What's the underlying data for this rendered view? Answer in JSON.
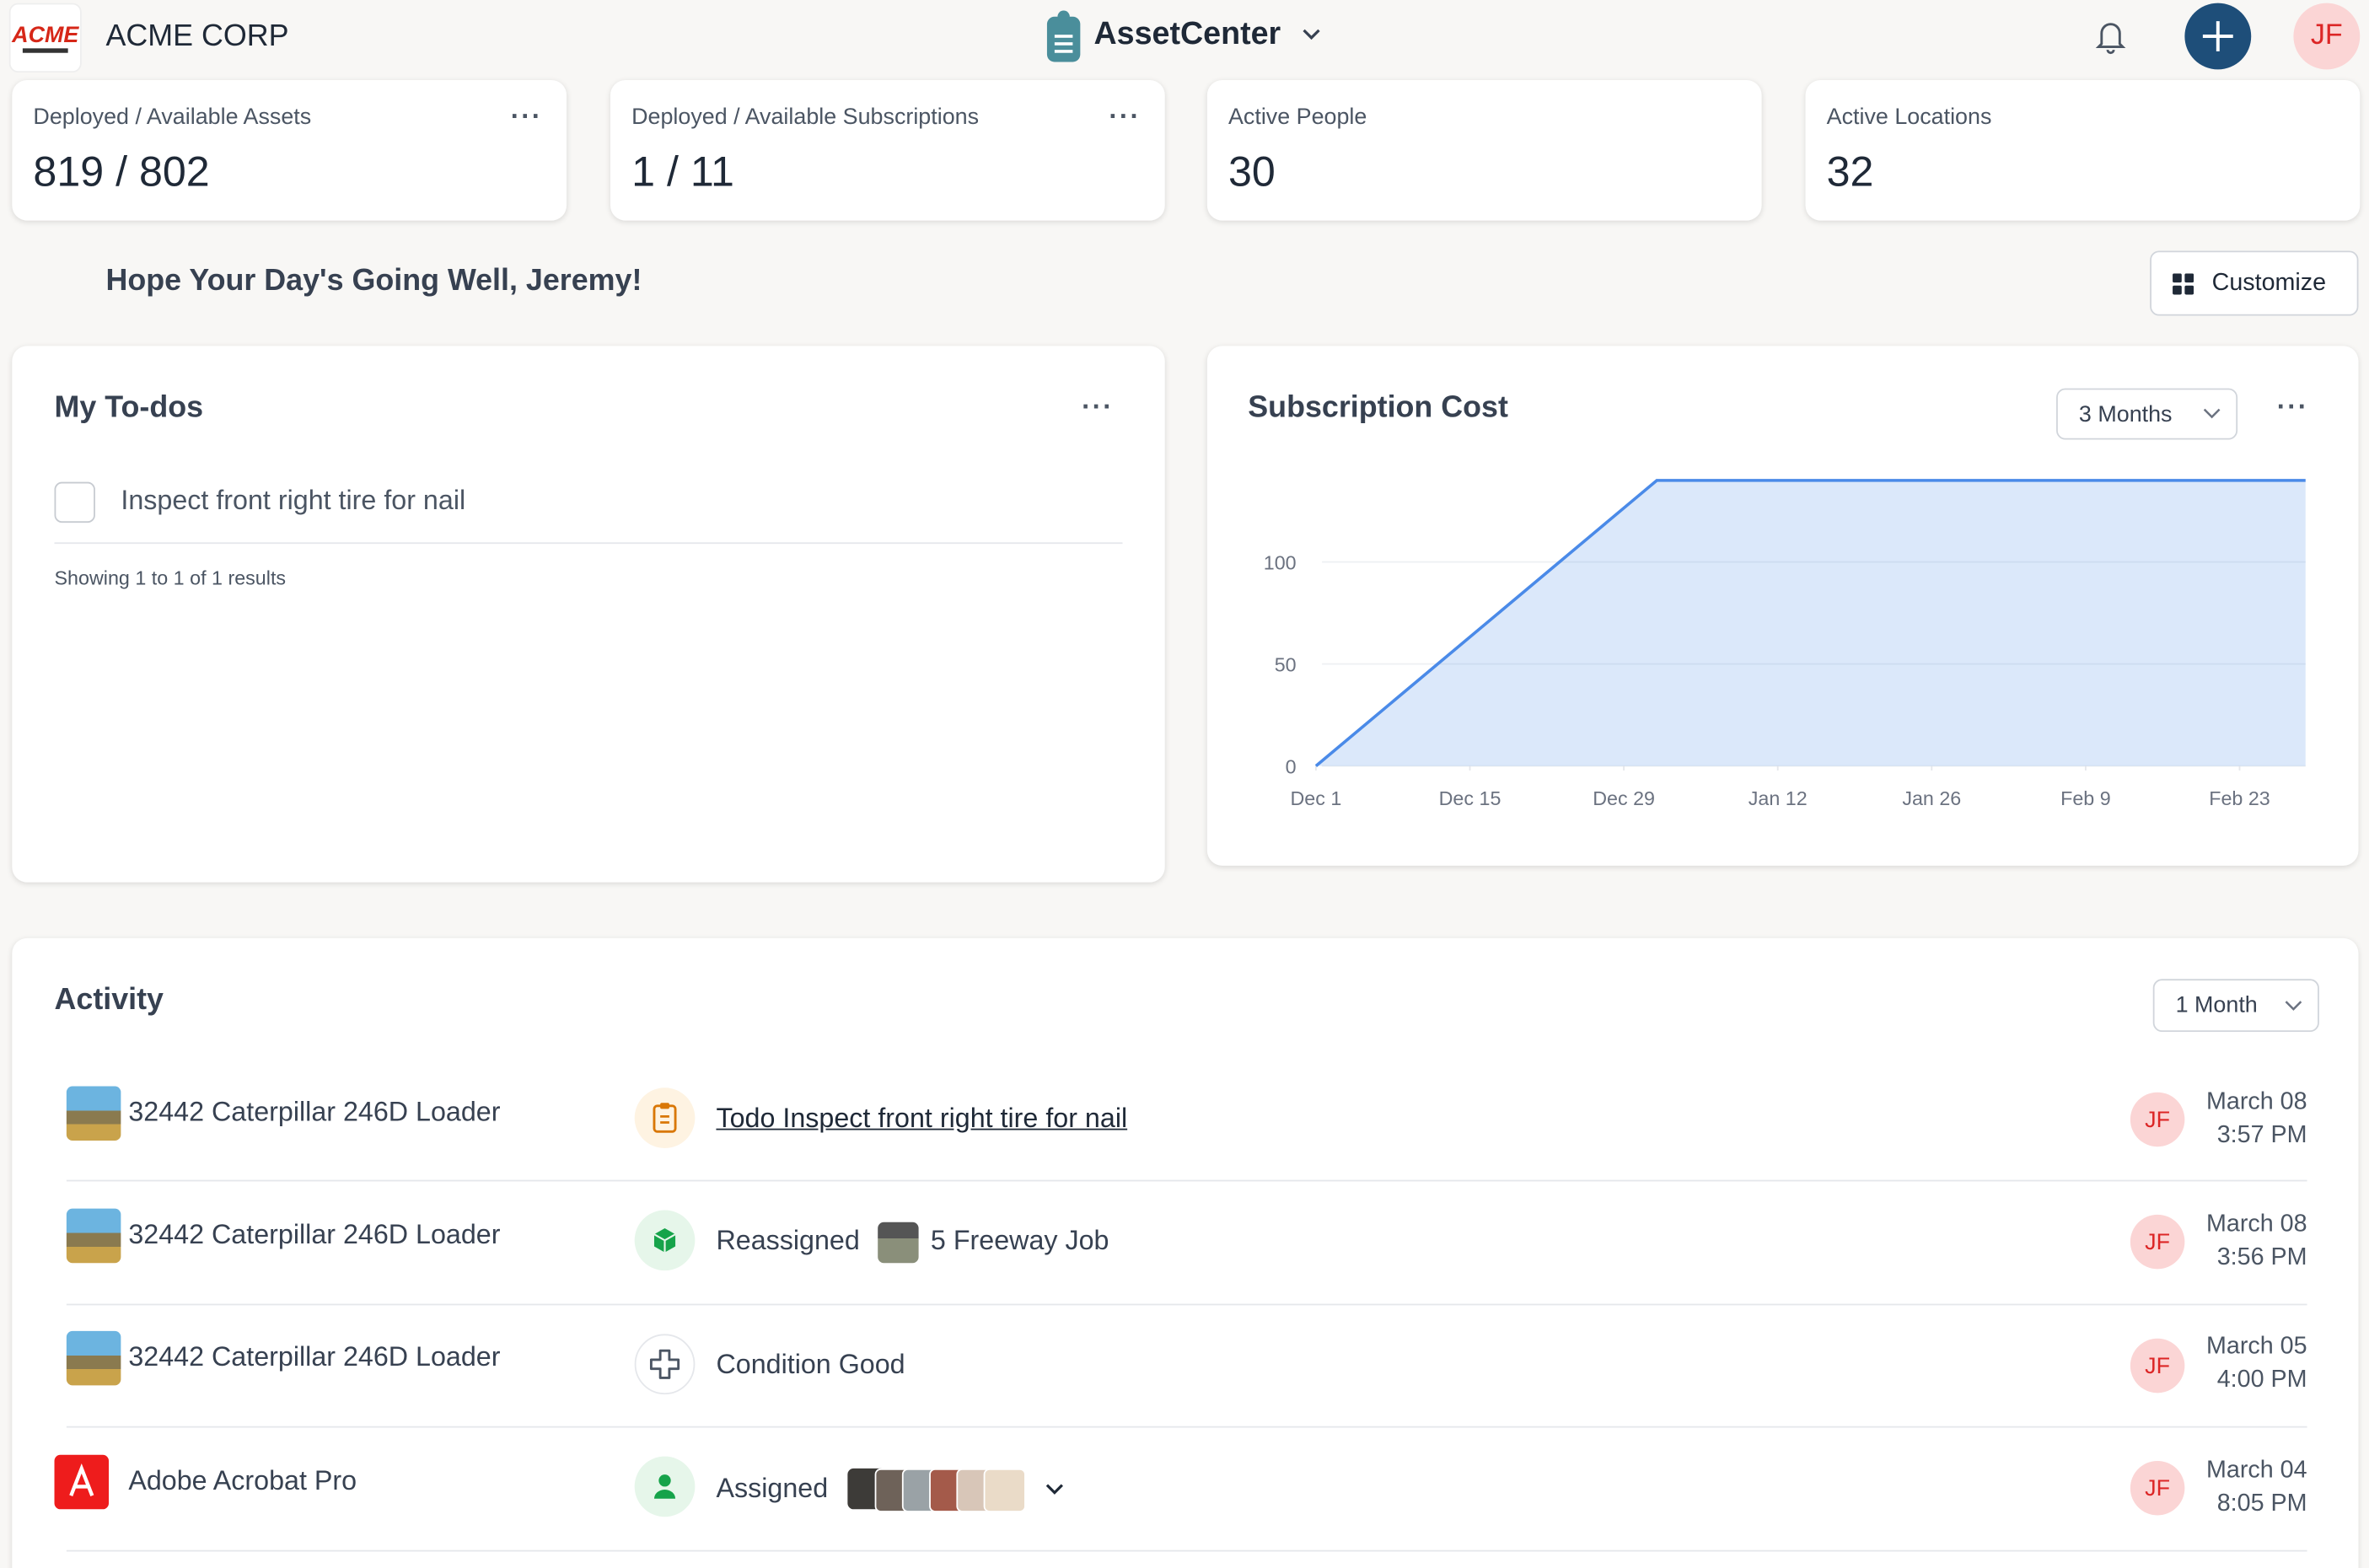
{
  "header": {
    "company": "ACME CORP",
    "app": "AssetCenter",
    "user_initials": "JF"
  },
  "stats": [
    {
      "label": "Deployed / Available Assets",
      "value": "819 / 802"
    },
    {
      "label": "Deployed / Available Subscriptions",
      "value": "1 / 11"
    },
    {
      "label": "Active People",
      "value": "30"
    },
    {
      "label": "Active Locations",
      "value": "32"
    }
  ],
  "greeting": "Hope Your Day's Going Well, Jeremy!",
  "customize": "Customize",
  "todos": {
    "title": "My To-dos",
    "items": [
      "Inspect front right tire for nail"
    ],
    "summary": "Showing 1 to 1 of 1 results"
  },
  "subscription_card": {
    "range": "3 Months"
  },
  "chart_data": {
    "type": "area",
    "title": "Subscription Cost",
    "x": [
      0,
      31,
      90
    ],
    "values": [
      0,
      140,
      140
    ],
    "color": "#4a8ae8",
    "xlim": [
      0,
      90
    ],
    "xticks": [
      {
        "value": 0,
        "label": "Dec 1"
      },
      {
        "value": 14,
        "label": "Dec 15"
      },
      {
        "value": 28,
        "label": "Dec 29"
      },
      {
        "value": 42,
        "label": "Jan 12"
      },
      {
        "value": 56,
        "label": "Jan 26"
      },
      {
        "value": 70,
        "label": "Feb 9"
      },
      {
        "value": 84,
        "label": "Feb 23"
      }
    ],
    "ylim": [
      0,
      140
    ],
    "yticks": [
      0,
      50,
      100
    ],
    "grid": true
  },
  "activity": {
    "title": "Activity",
    "range": "1 Month",
    "rows": [
      {
        "asset": "32442 Caterpillar 246D Loader",
        "action": "Todo Inspect front right tire for nail",
        "user": "JF",
        "date": "March 08",
        "time": "3:57 PM"
      },
      {
        "asset": "32442 Caterpillar 246D Loader",
        "action": "Reassigned",
        "target": "5 Freeway Job",
        "user": "JF",
        "date": "March 08",
        "time": "3:56 PM"
      },
      {
        "asset": "32442 Caterpillar 246D Loader",
        "action": "Condition Good",
        "user": "JF",
        "date": "March 05",
        "time": "4:00 PM"
      },
      {
        "asset": "Adobe Acrobat Pro",
        "action": "Assigned",
        "user": "JF",
        "date": "March 04",
        "time": "8:05 PM"
      }
    ]
  }
}
